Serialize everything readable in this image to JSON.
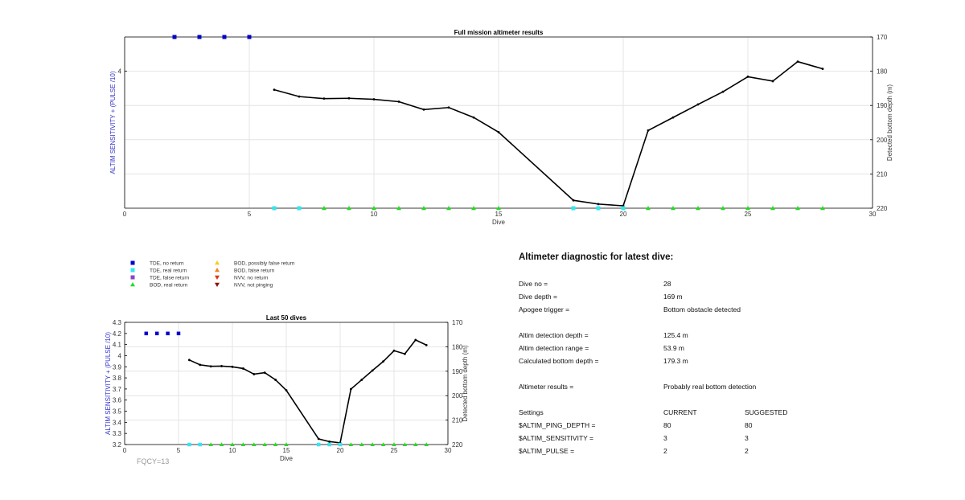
{
  "chart_data": [
    {
      "type": "line",
      "title": "Full mission altimeter results",
      "xlabel": "Dive",
      "ylabel_left": "ALTIM SENSITIVITY + (PULSE /10)",
      "ylabel_right": "Detected bottom depth (m)",
      "xlim": [
        0,
        30
      ],
      "x_ticks": [
        "0",
        "5",
        "10",
        "15",
        "20",
        "25",
        "30"
      ],
      "left_ylim": [
        3.2,
        4.2
      ],
      "left_ticks": [
        "4"
      ],
      "right_ylim": [
        170,
        220
      ],
      "right_reversed": true,
      "right_ticks": [
        "170",
        "180",
        "190",
        "200",
        "210",
        "220"
      ],
      "grid": true,
      "series": [
        {
          "name": "Detected bottom depth",
          "axis": "right",
          "color": "#000000",
          "x": [
            6,
            7,
            8,
            9,
            10,
            11,
            12,
            13,
            14,
            15,
            18,
            19,
            20,
            21,
            22,
            23,
            24,
            25,
            26,
            27,
            28
          ],
          "y": [
            185.4,
            187.4,
            188.0,
            187.9,
            188.2,
            188.9,
            191.2,
            190.6,
            193.5,
            197.8,
            217.7,
            218.8,
            219.3,
            197.3,
            193.5,
            189.7,
            186.0,
            181.6,
            182.9,
            177.2,
            179.3
          ]
        },
        {
          "name": "TDE, no return",
          "axis": "left",
          "marker": "square",
          "color": "#0000cc",
          "x": [
            2,
            3,
            4,
            5
          ],
          "y": [
            4.2,
            4.2,
            4.2,
            4.2
          ]
        },
        {
          "name": "TDE, real return",
          "axis": "left",
          "marker": "square",
          "color": "#33e6f0",
          "x": [
            6,
            7,
            18,
            19,
            20
          ],
          "y": [
            3.2,
            3.2,
            3.2,
            3.2,
            3.2
          ]
        },
        {
          "name": "BOD, real return",
          "axis": "left",
          "marker": "triangle-up",
          "color": "#22dd22",
          "x": [
            8,
            9,
            10,
            11,
            12,
            13,
            14,
            15,
            21,
            22,
            23,
            24,
            25,
            26,
            27,
            28
          ],
          "y": [
            3.2,
            3.2,
            3.2,
            3.2,
            3.2,
            3.2,
            3.2,
            3.2,
            3.2,
            3.2,
            3.2,
            3.2,
            3.2,
            3.2,
            3.2,
            3.2
          ]
        }
      ]
    },
    {
      "type": "line",
      "title": "Last 50 dives",
      "xlabel": "Dive",
      "ylabel_left": "ALTIM SENSITIVITY + (PULSE /10)",
      "ylabel_right": "Detected bottom depth (m)",
      "xlim": [
        0,
        30
      ],
      "x_ticks": [
        "0",
        "5",
        "10",
        "15",
        "20",
        "25",
        "30"
      ],
      "left_ylim": [
        3.2,
        4.3
      ],
      "left_ticks": [
        "3.2",
        "3.3",
        "3.4",
        "3.5",
        "3.6",
        "3.7",
        "3.8",
        "3.9",
        "4",
        "4.1",
        "4.2",
        "4.3"
      ],
      "right_ylim": [
        170,
        220
      ],
      "right_reversed": true,
      "right_ticks": [
        "170",
        "180",
        "190",
        "200",
        "210",
        "220"
      ],
      "grid": true,
      "series": [
        {
          "name": "Detected bottom depth",
          "axis": "right",
          "color": "#000000",
          "x": [
            6,
            7,
            8,
            9,
            10,
            11,
            12,
            13,
            14,
            15,
            18,
            19,
            20,
            21,
            22,
            23,
            24,
            25,
            26,
            27,
            28
          ],
          "y": [
            185.4,
            187.4,
            188.0,
            187.9,
            188.2,
            188.9,
            191.2,
            190.6,
            193.5,
            197.8,
            217.7,
            218.8,
            219.3,
            197.3,
            193.5,
            189.7,
            186.0,
            181.6,
            182.9,
            177.2,
            179.3
          ]
        },
        {
          "name": "TDE, no return",
          "axis": "left",
          "marker": "square",
          "color": "#0000cc",
          "x": [
            2,
            3,
            4,
            5
          ],
          "y": [
            4.2,
            4.2,
            4.2,
            4.2
          ]
        },
        {
          "name": "TDE, real return",
          "axis": "left",
          "marker": "square",
          "color": "#33e6f0",
          "x": [
            6,
            7,
            18,
            19,
            20
          ],
          "y": [
            3.2,
            3.2,
            3.2,
            3.2,
            3.2
          ]
        },
        {
          "name": "BOD, real return",
          "axis": "left",
          "marker": "triangle-up",
          "color": "#22dd22",
          "x": [
            8,
            9,
            10,
            11,
            12,
            13,
            14,
            15,
            21,
            22,
            23,
            24,
            25,
            26,
            27,
            28
          ],
          "y": [
            3.2,
            3.2,
            3.2,
            3.2,
            3.2,
            3.2,
            3.2,
            3.2,
            3.2,
            3.2,
            3.2,
            3.2,
            3.2,
            3.2,
            3.2,
            3.2
          ]
        }
      ]
    }
  ],
  "legend": [
    {
      "label": "TDE, no return",
      "marker": "square",
      "color": "#0000cc"
    },
    {
      "label": "TDE, real return",
      "marker": "square",
      "color": "#33e6f0"
    },
    {
      "label": "TDE, false return",
      "marker": "square",
      "color": "#8844cc"
    },
    {
      "label": "BOD, real return",
      "marker": "triangle-up",
      "color": "#22dd22"
    },
    {
      "label": "BOD, possibly false return",
      "marker": "triangle-up",
      "color": "#f0d020"
    },
    {
      "label": "BOD, false return",
      "marker": "triangle-up",
      "color": "#f08020"
    },
    {
      "label": "NVV, no return",
      "marker": "triangle-down",
      "color": "#dd3311"
    },
    {
      "label": "NVV, not pinging",
      "marker": "triangle-down",
      "color": "#881111"
    }
  ],
  "fqcy_label": "FQCY=13",
  "diagnostic": {
    "title": "Altimeter diagnostic for latest dive:",
    "dive_no_label": "Dive no =",
    "dive_no_value": "28",
    "dive_depth_label": "Dive depth =",
    "dive_depth_value": "169 m",
    "apogee_label": "Apogee trigger =",
    "apogee_value": "Bottom obstacle detected",
    "det_depth_label": "Altim detection depth =",
    "det_depth_value": "125.4 m",
    "det_range_label": "Altim detection range =",
    "det_range_value": "53.9 m",
    "calc_depth_label": "Calculated bottom depth =",
    "calc_depth_value": "179.3 m",
    "results_label": "Altimeter results =",
    "results_value": "Probably real bottom detection",
    "settings_label": "Settings",
    "current_label": "CURRENT",
    "suggested_label": "SUGGESTED",
    "settings": [
      {
        "name": "$ALTIM_PING_DEPTH =",
        "current": "80",
        "suggested": "80"
      },
      {
        "name": "$ALTIM_SENSITIVITY =",
        "current": "3",
        "suggested": "3"
      },
      {
        "name": "$ALTIM_PULSE =",
        "current": "2",
        "suggested": "2"
      }
    ]
  }
}
